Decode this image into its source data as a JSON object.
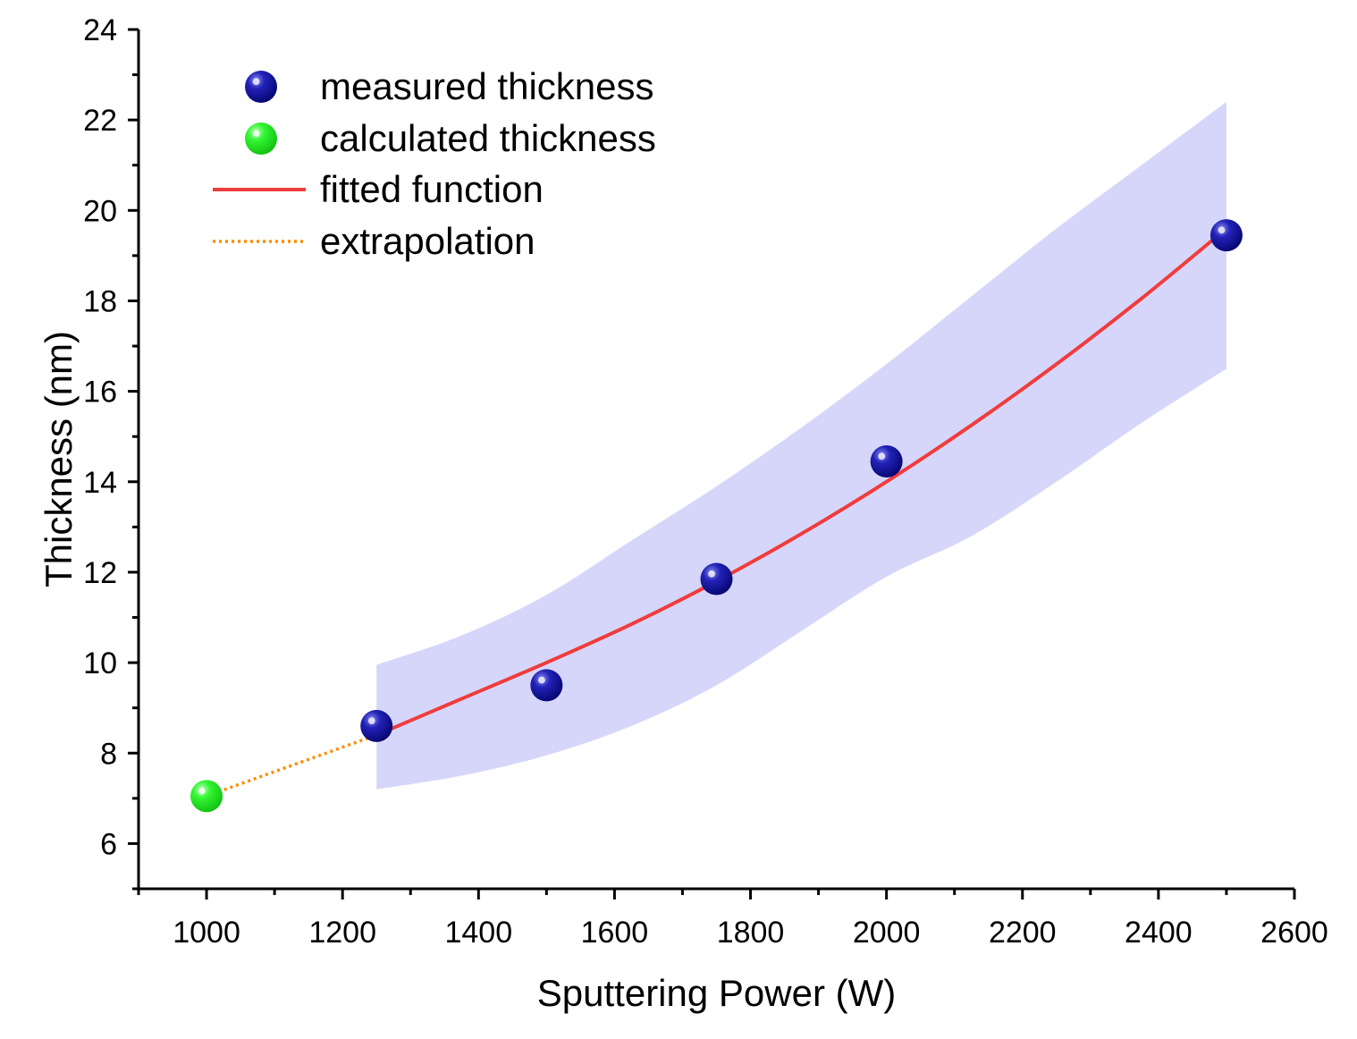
{
  "chart_data": {
    "type": "scatter",
    "xlabel": "Sputtering Power (W)",
    "ylabel": "Thickness (nm)",
    "xlim": [
      900,
      2600
    ],
    "ylim": [
      5,
      24
    ],
    "x_ticks": [
      1000,
      1200,
      1400,
      1600,
      1800,
      2000,
      2200,
      2400,
      2600
    ],
    "y_ticks": [
      6,
      8,
      10,
      12,
      14,
      16,
      18,
      20,
      22,
      24
    ],
    "x_minor_step": 100,
    "y_minor_step": 1,
    "colors": {
      "measured": "#0a0a8c",
      "calculated": "#22ee22",
      "fit": "#f03c3c",
      "extrapolation": "#ff8c00",
      "band": "#d6d6fa"
    },
    "series": [
      {
        "name": "measured thickness",
        "kind": "scatter",
        "points": [
          {
            "x": 1250,
            "y": 8.6
          },
          {
            "x": 1500,
            "y": 9.5
          },
          {
            "x": 1750,
            "y": 11.85
          },
          {
            "x": 2000,
            "y": 14.45
          },
          {
            "x": 2500,
            "y": 19.45
          }
        ]
      },
      {
        "name": "calculated thickness",
        "kind": "scatter",
        "points": [
          {
            "x": 1000,
            "y": 7.05
          }
        ]
      },
      {
        "name": "fitted function",
        "kind": "line",
        "x": [
          1250,
          1375,
          1500,
          1625,
          1750,
          1875,
          2000,
          2125,
          2250,
          2375,
          2500
        ],
        "y": [
          8.4,
          9.2,
          10.0,
          10.85,
          11.8,
          12.85,
          14.0,
          15.25,
          16.6,
          18.05,
          19.6
        ]
      },
      {
        "name": "extrapolation",
        "kind": "dotted-line",
        "x": [
          1000,
          1250
        ],
        "y": [
          7.05,
          8.4
        ]
      }
    ],
    "confidence_band": {
      "x": [
        1250,
        1375,
        1500,
        1625,
        1750,
        1875,
        2000,
        2125,
        2250,
        2375,
        2500
      ],
      "upper": [
        9.95,
        10.6,
        11.5,
        12.7,
        13.9,
        15.2,
        16.6,
        18.1,
        19.6,
        21.0,
        22.4
      ],
      "lower": [
        7.2,
        7.5,
        7.95,
        8.6,
        9.5,
        10.7,
        11.9,
        12.8,
        14.0,
        15.3,
        16.5
      ]
    },
    "legend": {
      "position": "top-left",
      "entries": [
        {
          "label": "measured thickness",
          "marker": "measured"
        },
        {
          "label": "calculated thickness",
          "marker": "calculated"
        },
        {
          "label": "fitted function",
          "marker": "fit"
        },
        {
          "label": "extrapolation",
          "marker": "extrapolation"
        }
      ]
    }
  }
}
